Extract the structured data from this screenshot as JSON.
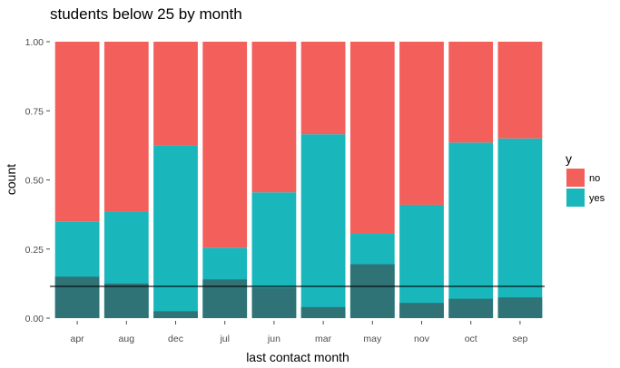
{
  "chart_data": {
    "type": "bar",
    "stacked": true,
    "title": "students below 25 by month",
    "xlabel": "last contact month",
    "ylabel": "count",
    "categories": [
      "apr",
      "aug",
      "dec",
      "jul",
      "jun",
      "mar",
      "may",
      "nov",
      "oct",
      "sep"
    ],
    "series": [
      {
        "name": "yes",
        "color": "#19B6BC",
        "values": [
          0.35,
          0.385,
          0.625,
          0.255,
          0.455,
          0.665,
          0.305,
          0.41,
          0.635,
          0.65
        ]
      },
      {
        "name": "no",
        "color": "#F35F5B",
        "values": [
          0.65,
          0.615,
          0.375,
          0.745,
          0.545,
          0.335,
          0.695,
          0.59,
          0.365,
          0.35
        ]
      }
    ],
    "overlay_values": [
      0.15,
      0.125,
      0.025,
      0.14,
      0.11,
      0.04,
      0.195,
      0.055,
      0.07,
      0.075
    ],
    "overlay_color": "#2F7377",
    "reference_line_y": 0.115,
    "ylim": [
      0,
      1
    ],
    "yticks": [
      0.0,
      0.25,
      0.5,
      0.75,
      1.0
    ],
    "ytick_labels": [
      "0.00",
      "0.25",
      "0.50",
      "0.75",
      "1.00"
    ],
    "grid": false,
    "legend_title": "y",
    "legend_position": "right"
  }
}
